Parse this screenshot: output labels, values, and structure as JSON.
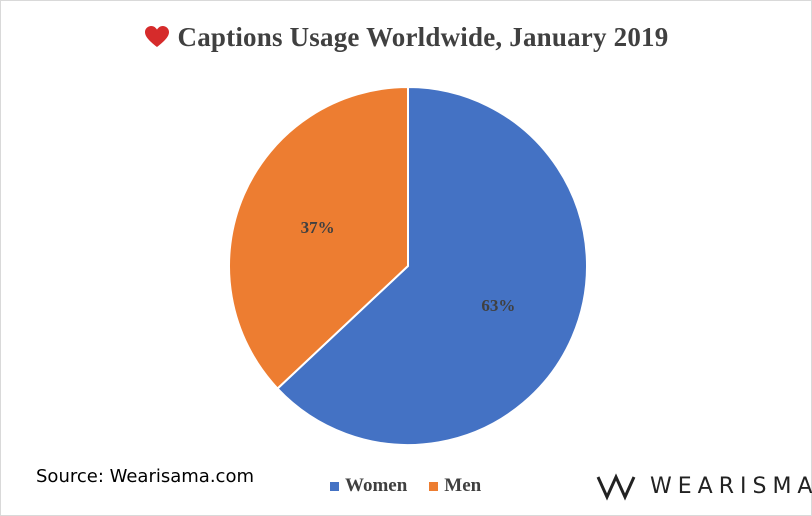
{
  "chart_data": {
    "type": "pie",
    "title": "Captions Usage Worldwide, January 2019",
    "categories": [
      "Women",
      "Men"
    ],
    "values": [
      63,
      37
    ],
    "data_labels": [
      "63%",
      "37%"
    ],
    "colors": [
      "#4472c4",
      "#ed7d31"
    ],
    "legend_placement": "bottom"
  },
  "title_icon": "heart-icon",
  "source": "Source: Wearisama.com",
  "brand": {
    "name": "WEARISMA",
    "icon": "wearisma-logo-icon"
  }
}
